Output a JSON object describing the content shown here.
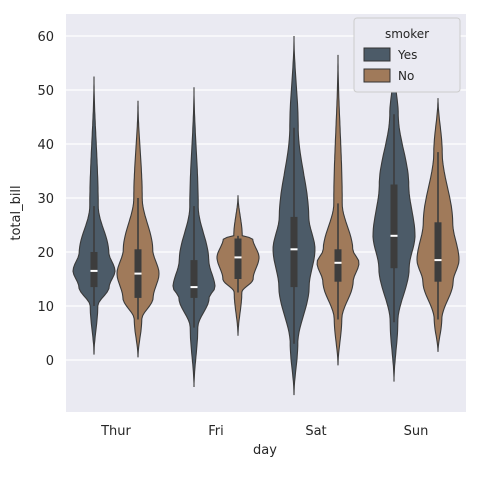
{
  "chart_data": {
    "type": "violin",
    "title": "",
    "xlabel": "day",
    "ylabel": "total_bill",
    "categories": [
      "Thur",
      "Fri",
      "Sat",
      "Sun"
    ],
    "yticks": [
      0,
      10,
      20,
      30,
      40,
      50,
      60
    ],
    "ylim": [
      -10,
      64
    ],
    "grid": true,
    "legend": {
      "title": "smoker",
      "position": "top-right",
      "entries": [
        {
          "label": "Yes",
          "color": "#4c5b68"
        },
        {
          "label": "No",
          "color": "#a07a5a"
        }
      ]
    },
    "series": [
      {
        "name": "Yes",
        "color": "#4c5b68",
        "violins": [
          {
            "day": "Thur",
            "min": 1,
            "q1": 13.5,
            "median": 16.5,
            "q3": 20,
            "max": 52.5,
            "whisker_low": 10,
            "whisker_high": 28.5
          },
          {
            "day": "Fri",
            "min": -5,
            "q1": 11.5,
            "median": 13.5,
            "q3": 18.5,
            "max": 50.5,
            "whisker_low": 6,
            "whisker_high": 28.5
          },
          {
            "day": "Sat",
            "min": -6.5,
            "q1": 13.5,
            "median": 20.5,
            "q3": 26.5,
            "max": 60,
            "whisker_low": 3,
            "whisker_high": 43
          },
          {
            "day": "Sun",
            "min": -4,
            "q1": 17,
            "median": 23,
            "q3": 32.5,
            "max": 54,
            "whisker_low": 7,
            "whisker_high": 45.5
          }
        ]
      },
      {
        "name": "No",
        "color": "#a07a5a",
        "violins": [
          {
            "day": "Thur",
            "min": 0.5,
            "q1": 11.5,
            "median": 16,
            "q3": 20.5,
            "max": 48,
            "whisker_low": 7.5,
            "whisker_high": 30
          },
          {
            "day": "Fri",
            "min": 4.5,
            "q1": 15,
            "median": 19,
            "q3": 22.5,
            "max": 30.5,
            "whisker_low": 12.5,
            "whisker_high": 23
          },
          {
            "day": "Sat",
            "min": -1,
            "q1": 14.5,
            "median": 18,
            "q3": 20.5,
            "max": 56.5,
            "whisker_low": 7.5,
            "whisker_high": 29
          },
          {
            "day": "Sun",
            "min": 1.5,
            "q1": 14.5,
            "median": 18.5,
            "q3": 25.5,
            "max": 48.5,
            "whisker_low": 7.5,
            "whisker_high": 38.5
          }
        ]
      }
    ]
  }
}
